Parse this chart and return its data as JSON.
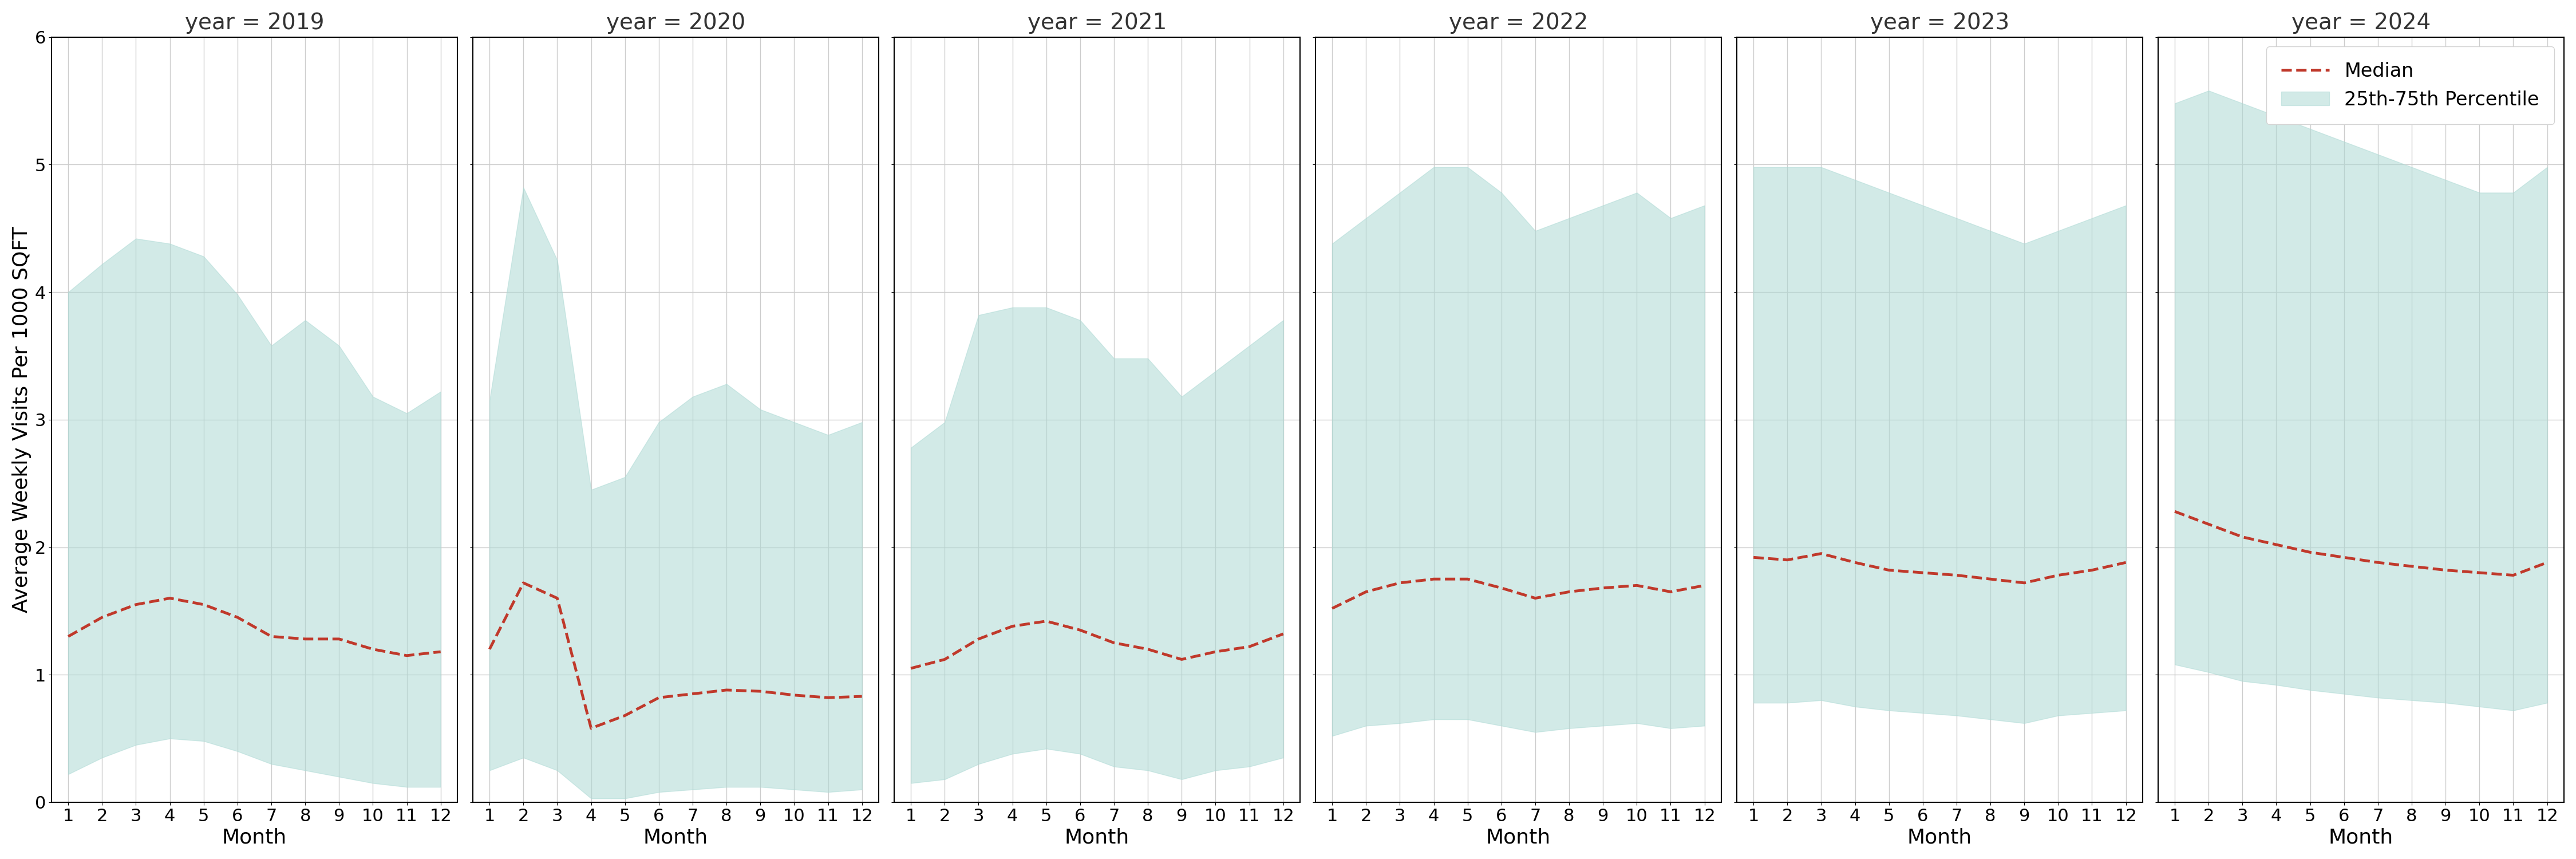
{
  "years": [
    2019,
    2020,
    2021,
    2022,
    2023,
    2024
  ],
  "months": [
    1,
    2,
    3,
    4,
    5,
    6,
    7,
    8,
    9,
    10,
    11,
    12
  ],
  "median": {
    "2019": [
      1.3,
      1.45,
      1.55,
      1.6,
      1.55,
      1.45,
      1.3,
      1.28,
      1.28,
      1.2,
      1.15,
      1.18
    ],
    "2020": [
      1.2,
      1.72,
      1.6,
      0.58,
      0.68,
      0.82,
      0.85,
      0.88,
      0.87,
      0.84,
      0.82,
      0.83
    ],
    "2021": [
      1.05,
      1.12,
      1.28,
      1.38,
      1.42,
      1.35,
      1.25,
      1.2,
      1.12,
      1.18,
      1.22,
      1.32
    ],
    "2022": [
      1.52,
      1.65,
      1.72,
      1.75,
      1.75,
      1.68,
      1.6,
      1.65,
      1.68,
      1.7,
      1.65,
      1.7
    ],
    "2023": [
      1.92,
      1.9,
      1.95,
      1.88,
      1.82,
      1.8,
      1.78,
      1.75,
      1.72,
      1.78,
      1.82,
      1.88
    ],
    "2024": [
      2.28,
      2.18,
      2.08,
      2.02,
      1.96,
      1.92,
      1.88,
      1.85,
      1.82,
      1.8,
      1.78,
      1.88
    ]
  },
  "p25": {
    "2019": [
      0.22,
      0.35,
      0.45,
      0.5,
      0.48,
      0.4,
      0.3,
      0.25,
      0.2,
      0.15,
      0.12,
      0.12
    ],
    "2020": [
      0.25,
      0.35,
      0.25,
      0.03,
      0.03,
      0.08,
      0.1,
      0.12,
      0.12,
      0.1,
      0.08,
      0.1
    ],
    "2021": [
      0.15,
      0.18,
      0.3,
      0.38,
      0.42,
      0.38,
      0.28,
      0.25,
      0.18,
      0.25,
      0.28,
      0.35
    ],
    "2022": [
      0.52,
      0.6,
      0.62,
      0.65,
      0.65,
      0.6,
      0.55,
      0.58,
      0.6,
      0.62,
      0.58,
      0.6
    ],
    "2023": [
      0.78,
      0.78,
      0.8,
      0.75,
      0.72,
      0.7,
      0.68,
      0.65,
      0.62,
      0.68,
      0.7,
      0.72
    ],
    "2024": [
      1.08,
      1.02,
      0.95,
      0.92,
      0.88,
      0.85,
      0.82,
      0.8,
      0.78,
      0.75,
      0.72,
      0.78
    ]
  },
  "p75": {
    "2019": [
      4.0,
      4.22,
      4.42,
      4.38,
      4.28,
      3.98,
      3.58,
      3.78,
      3.58,
      3.18,
      3.05,
      3.22
    ],
    "2020": [
      3.15,
      4.82,
      4.25,
      2.45,
      2.55,
      2.98,
      3.18,
      3.28,
      3.08,
      2.98,
      2.88,
      2.98
    ],
    "2021": [
      2.78,
      2.98,
      3.82,
      3.88,
      3.88,
      3.78,
      3.48,
      3.48,
      3.18,
      3.38,
      3.58,
      3.78
    ],
    "2022": [
      4.38,
      4.58,
      4.78,
      4.98,
      4.98,
      4.78,
      4.48,
      4.58,
      4.68,
      4.78,
      4.58,
      4.68
    ],
    "2023": [
      4.98,
      4.98,
      4.98,
      4.88,
      4.78,
      4.68,
      4.58,
      4.48,
      4.38,
      4.48,
      4.58,
      4.68
    ],
    "2024": [
      5.48,
      5.58,
      5.48,
      5.38,
      5.28,
      5.18,
      5.08,
      4.98,
      4.88,
      4.78,
      4.78,
      4.98
    ]
  },
  "fill_color": "#aedad5",
  "fill_alpha": 0.55,
  "line_color": "#c0392b",
  "line_style": "--",
  "line_width": 3.5,
  "ylabel": "Average Weekly Visits Per 1000 SQFT",
  "xlabel": "Month",
  "ylim": [
    0,
    6
  ],
  "yticks": [
    0,
    1,
    2,
    3,
    4,
    5,
    6
  ],
  "xticks": [
    1,
    2,
    3,
    4,
    5,
    6,
    7,
    8,
    9,
    10,
    11,
    12
  ],
  "legend_median": "Median",
  "legend_fill": "25th-75th Percentile",
  "background_color": "#ffffff",
  "grid_color": "#cccccc",
  "title_fontsize": 28,
  "label_fontsize": 26,
  "tick_fontsize": 22,
  "legend_fontsize": 24
}
